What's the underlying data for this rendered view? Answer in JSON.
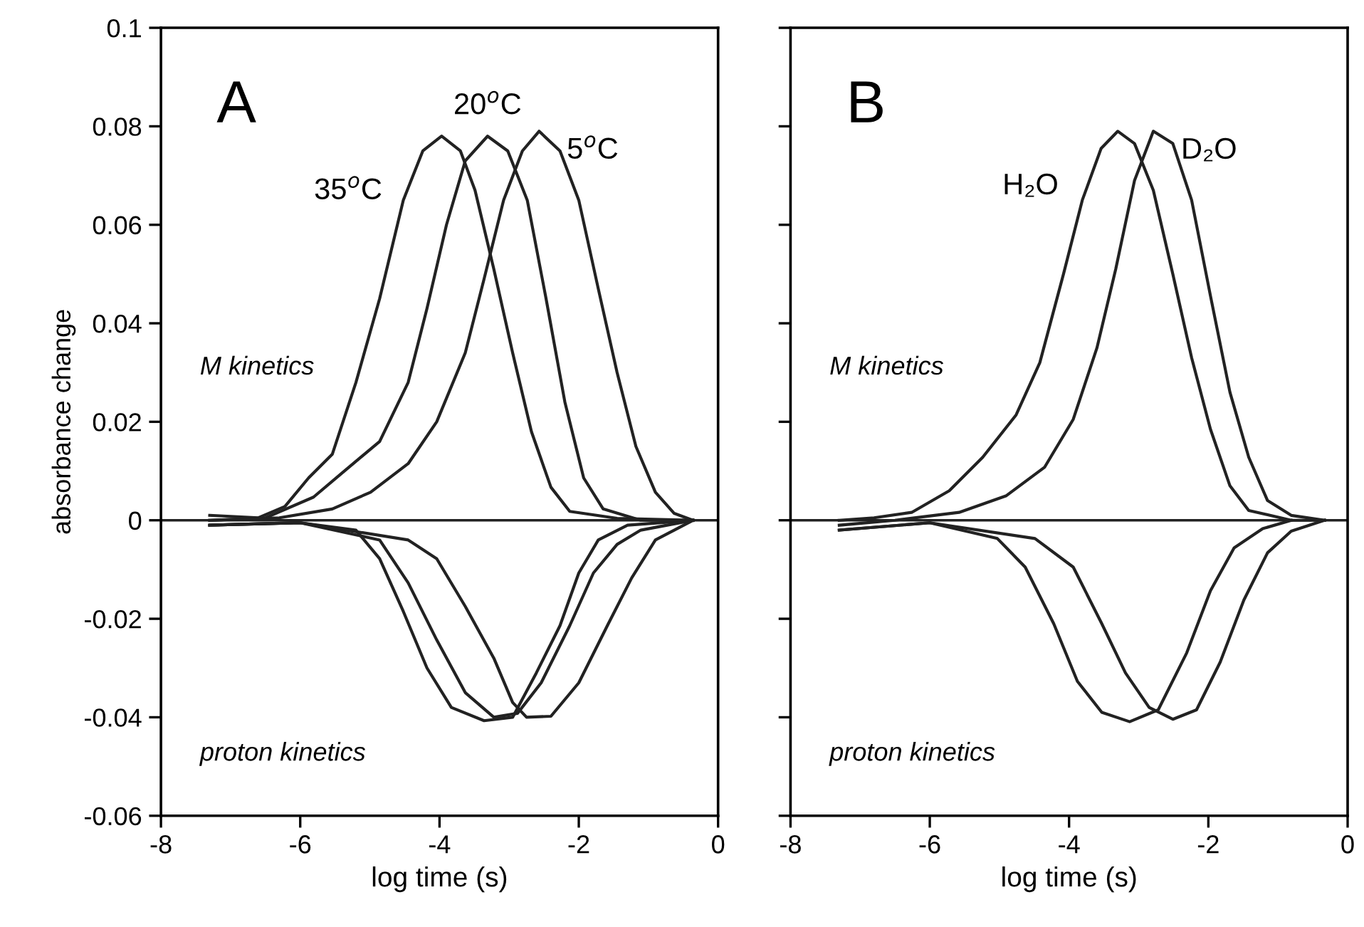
{
  "chart_data": [
    {
      "type": "line",
      "xlabel": "log time (s)",
      "ylabel": "absorbance change",
      "xlim": [
        -8,
        0
      ],
      "ylim": [
        -0.06,
        0.1
      ],
      "xticks": [
        -8,
        -6,
        -4,
        -2,
        0
      ],
      "yticks": [
        -0.06,
        -0.04,
        -0.02,
        0,
        0.02,
        0.04,
        0.06,
        0.08,
        0.1
      ],
      "grid": false,
      "legend": false,
      "line_style": "solid",
      "marker": "none",
      "annotations": [
        "A",
        "M kinetics",
        "proton kinetics"
      ],
      "ref_lines": [
        {
          "axis": "y",
          "value": 0,
          "color": "#222222"
        }
      ],
      "series": [
        {
          "name": "35$^{o}$C",
          "color": "#222222",
          "x": [
            -7.3,
            -6.6,
            -6.22,
            -5.88,
            -5.54,
            -5.2,
            -4.86,
            -4.52,
            -4.24,
            -3.97,
            -3.7,
            -3.49,
            -3.22,
            -2.95,
            -2.68,
            -2.4,
            -2.13,
            -1.45,
            -0.36
          ],
          "values": [
            0.001,
            0.0005,
            0.0028,
            0.0086,
            0.0134,
            0.028,
            0.045,
            0.065,
            0.075,
            0.078,
            0.075,
            0.067,
            0.051,
            0.034,
            0.018,
            0.0067,
            0.0018,
            0.0004,
            0
          ]
        },
        {
          "name": "20$^{o}$C",
          "color": "#222222",
          "x": [
            -7.3,
            -6.5,
            -5.81,
            -5.4,
            -4.86,
            -4.45,
            -4.18,
            -3.9,
            -3.63,
            -3.31,
            -3.02,
            -2.74,
            -2.47,
            -2.2,
            -1.93,
            -1.65,
            -1.11,
            -0.36
          ],
          "values": [
            0.0,
            0.0005,
            0.0047,
            0.0096,
            0.016,
            0.028,
            0.043,
            0.06,
            0.073,
            0.078,
            0.075,
            0.065,
            0.045,
            0.024,
            0.0086,
            0.0023,
            0,
            0
          ]
        },
        {
          "name": "5$^{o}$C",
          "color": "#222222",
          "x": [
            -7.3,
            -6.3,
            -5.54,
            -4.99,
            -4.45,
            -4.04,
            -3.63,
            -3.36,
            -3.08,
            -2.81,
            -2.57,
            -2.27,
            -2.0,
            -1.72,
            -1.45,
            -1.18,
            -0.9,
            -0.63,
            -0.36
          ],
          "values": [
            0.0,
            0.0005,
            0.0023,
            0.0057,
            0.0115,
            0.02,
            0.034,
            0.049,
            0.065,
            0.075,
            0.079,
            0.075,
            0.065,
            0.047,
            0.03,
            0.015,
            0.0057,
            0.0014,
            0
          ]
        },
        {
          "color": "#222222",
          "x": [
            -7.3,
            -6.0,
            -5.2,
            -4.86,
            -4.52,
            -4.18,
            -3.83,
            -3.36,
            -2.95,
            -2.61,
            -2.27,
            -2.0,
            -1.72,
            -1.3,
            -0.36
          ],
          "values": [
            -0.001,
            -0.0005,
            -0.002,
            -0.0078,
            -0.0185,
            -0.03,
            -0.038,
            -0.0407,
            -0.04,
            -0.031,
            -0.0214,
            -0.0107,
            -0.004,
            -0.001,
            0
          ]
        },
        {
          "color": "#222222",
          "x": [
            -7.3,
            -6.0,
            -4.86,
            -4.45,
            -4.04,
            -3.63,
            -3.22,
            -2.88,
            -2.54,
            -2.13,
            -1.79,
            -1.45,
            -1.11,
            -0.36
          ],
          "values": [
            -0.001,
            -0.0005,
            -0.004,
            -0.0127,
            -0.0243,
            -0.035,
            -0.04,
            -0.0392,
            -0.033,
            -0.0214,
            -0.0107,
            -0.0049,
            -0.002,
            0
          ]
        },
        {
          "color": "#222222",
          "x": [
            -7.3,
            -6.0,
            -4.45,
            -4.04,
            -3.63,
            -3.22,
            -2.95,
            -2.75,
            -2.4,
            -2.0,
            -1.59,
            -1.24,
            -0.9,
            -0.63,
            -0.36
          ],
          "values": [
            -0.001,
            -0.0005,
            -0.004,
            -0.0078,
            -0.0175,
            -0.028,
            -0.037,
            -0.04,
            -0.0398,
            -0.033,
            -0.0214,
            -0.0117,
            -0.004,
            -0.002,
            0
          ]
        }
      ]
    },
    {
      "type": "line",
      "xlabel": "log time (s)",
      "xlim": [
        -8,
        0
      ],
      "ylim": [
        -0.06,
        0.1
      ],
      "xticks": [
        -8,
        -6,
        -4,
        -2,
        0
      ],
      "yticks": [
        -0.06,
        -0.04,
        -0.02,
        0,
        0.02,
        0.04,
        0.06,
        0.08,
        0.1
      ],
      "tick_labels": "x",
      "grid": false,
      "legend": false,
      "line_style": "solid",
      "marker": "none",
      "annotations": [
        "B",
        "M kinetics",
        "proton kinetics"
      ],
      "ref_lines": [
        {
          "axis": "y",
          "value": 0,
          "color": "#222222"
        }
      ],
      "series": [
        {
          "name": "H₂O",
          "color": "#222222",
          "x": [
            -7.3,
            -6.8,
            -6.26,
            -5.72,
            -5.24,
            -4.76,
            -4.42,
            -4.08,
            -3.81,
            -3.54,
            -3.3,
            -3.06,
            -2.79,
            -2.51,
            -2.24,
            -1.97,
            -1.69,
            -1.42,
            -0.81,
            -0.33
          ],
          "values": [
            0.0,
            0.0005,
            0.0016,
            0.006,
            0.0128,
            0.0214,
            0.032,
            0.05,
            0.065,
            0.0755,
            0.079,
            0.0765,
            0.067,
            0.05,
            0.033,
            0.0185,
            0.007,
            0.002,
            0,
            0
          ]
        },
        {
          "name": "D₂O",
          "color": "#222222",
          "x": [
            -7.3,
            -6.5,
            -5.58,
            -4.9,
            -4.35,
            -3.94,
            -3.6,
            -3.33,
            -3.06,
            -2.79,
            -2.51,
            -2.24,
            -1.97,
            -1.69,
            -1.42,
            -1.15,
            -0.81,
            -0.33
          ],
          "values": [
            -0.001,
            0.0,
            0.0016,
            0.005,
            0.0108,
            0.0205,
            0.035,
            0.051,
            0.069,
            0.079,
            0.0765,
            0.065,
            0.0456,
            0.026,
            0.0128,
            0.004,
            0.001,
            0
          ]
        },
        {
          "color": "#222222",
          "x": [
            -7.3,
            -6.0,
            -5.03,
            -4.63,
            -4.22,
            -3.88,
            -3.53,
            -3.13,
            -2.72,
            -2.31,
            -1.97,
            -1.63,
            -1.22,
            -0.81
          ],
          "values": [
            -0.002,
            -0.0005,
            -0.0037,
            -0.0095,
            -0.021,
            -0.0327,
            -0.039,
            -0.0409,
            -0.0385,
            -0.0269,
            -0.0143,
            -0.0056,
            -0.0017,
            0
          ]
        },
        {
          "color": "#222222",
          "x": [
            -7.3,
            -6.0,
            -4.49,
            -3.94,
            -3.53,
            -3.19,
            -2.85,
            -2.51,
            -2.17,
            -1.83,
            -1.49,
            -1.15,
            -0.81,
            -0.33
          ],
          "values": [
            -0.002,
            -0.0005,
            -0.0037,
            -0.0095,
            -0.021,
            -0.031,
            -0.038,
            -0.0404,
            -0.0385,
            -0.0288,
            -0.0162,
            -0.0066,
            -0.0022,
            0
          ]
        }
      ]
    }
  ]
}
